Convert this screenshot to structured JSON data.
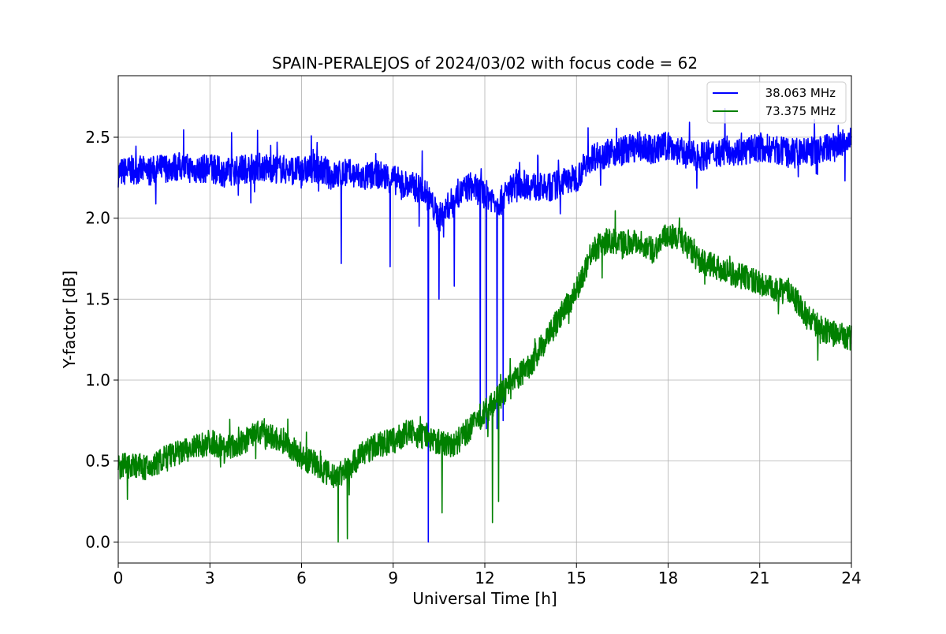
{
  "chart_data": {
    "type": "line",
    "title": "SPAIN-PERALEJOS of 2024/03/02 with focus code = 62",
    "xlabel": "Universal Time [h]",
    "ylabel": "Y-factor [dB]",
    "xlim": [
      0,
      24
    ],
    "ylim": [
      -0.13,
      2.88
    ],
    "xticks": [
      "0",
      "3",
      "6",
      "9",
      "12",
      "15",
      "18",
      "21",
      "24"
    ],
    "yticks": [
      "0.0",
      "0.5",
      "1.0",
      "1.5",
      "2.0",
      "2.5"
    ],
    "grid": true,
    "legend_position": "top-right",
    "series": [
      {
        "name": "38.063 MHz",
        "color": "#0000ff",
        "x": [
          0.0,
          0.5,
          1.0,
          1.5,
          2.0,
          2.5,
          3.0,
          3.5,
          4.0,
          4.5,
          5.0,
          5.5,
          6.0,
          6.5,
          7.0,
          7.5,
          8.0,
          8.5,
          9.0,
          9.5,
          10.0,
          10.5,
          11.0,
          11.5,
          12.0,
          12.5,
          13.0,
          13.5,
          14.0,
          14.5,
          15.0,
          15.5,
          16.0,
          16.5,
          17.0,
          17.5,
          18.0,
          18.5,
          19.0,
          19.5,
          20.0,
          20.5,
          21.0,
          21.5,
          22.0,
          22.5,
          23.0,
          23.5,
          24.0
        ],
        "y": [
          2.28,
          2.3,
          2.29,
          2.31,
          2.32,
          2.3,
          2.31,
          2.28,
          2.3,
          2.32,
          2.31,
          2.3,
          2.29,
          2.31,
          2.26,
          2.28,
          2.25,
          2.27,
          2.24,
          2.2,
          2.18,
          2.0,
          2.12,
          2.2,
          2.15,
          2.1,
          2.22,
          2.2,
          2.18,
          2.22,
          2.25,
          2.38,
          2.4,
          2.42,
          2.44,
          2.42,
          2.45,
          2.4,
          2.38,
          2.4,
          2.42,
          2.41,
          2.44,
          2.42,
          2.4,
          2.41,
          2.42,
          2.45,
          2.47
        ]
      },
      {
        "name": "73.375 MHz",
        "color": "#008000",
        "x": [
          0.0,
          0.5,
          1.0,
          1.5,
          2.0,
          2.5,
          3.0,
          3.5,
          4.0,
          4.5,
          5.0,
          5.5,
          6.0,
          6.5,
          7.0,
          7.5,
          8.0,
          8.5,
          9.0,
          9.5,
          10.0,
          10.5,
          11.0,
          11.5,
          12.0,
          12.5,
          13.0,
          13.5,
          14.0,
          14.5,
          15.0,
          15.5,
          16.0,
          16.5,
          17.0,
          17.5,
          18.0,
          18.5,
          19.0,
          19.5,
          20.0,
          20.5,
          21.0,
          21.5,
          22.0,
          22.5,
          23.0,
          23.5,
          24.0
        ],
        "y": [
          0.46,
          0.48,
          0.45,
          0.52,
          0.55,
          0.58,
          0.62,
          0.58,
          0.6,
          0.68,
          0.65,
          0.62,
          0.52,
          0.48,
          0.4,
          0.45,
          0.55,
          0.6,
          0.62,
          0.68,
          0.65,
          0.62,
          0.6,
          0.7,
          0.8,
          0.9,
          1.0,
          1.1,
          1.25,
          1.4,
          1.55,
          1.8,
          1.86,
          1.85,
          1.86,
          1.8,
          1.9,
          1.86,
          1.74,
          1.7,
          1.66,
          1.64,
          1.6,
          1.55,
          1.55,
          1.4,
          1.32,
          1.28,
          1.26
        ]
      }
    ],
    "noise": [
      0.09,
      0.08
    ],
    "spikes": [
      [
        [
          10.15,
          0.0
        ],
        [
          11.85,
          0.75
        ],
        [
          12.05,
          0.7
        ],
        [
          12.4,
          0.7
        ],
        [
          12.6,
          0.75
        ],
        [
          7.3,
          1.72
        ],
        [
          8.9,
          1.7
        ],
        [
          9.85,
          1.95
        ],
        [
          10.5,
          1.5
        ],
        [
          11.0,
          1.58
        ]
      ],
      [
        [
          12.25,
          0.12
        ],
        [
          12.45,
          0.25
        ],
        [
          7.5,
          0.02
        ],
        [
          7.2,
          0.0
        ],
        [
          10.6,
          0.18
        ]
      ]
    ]
  }
}
